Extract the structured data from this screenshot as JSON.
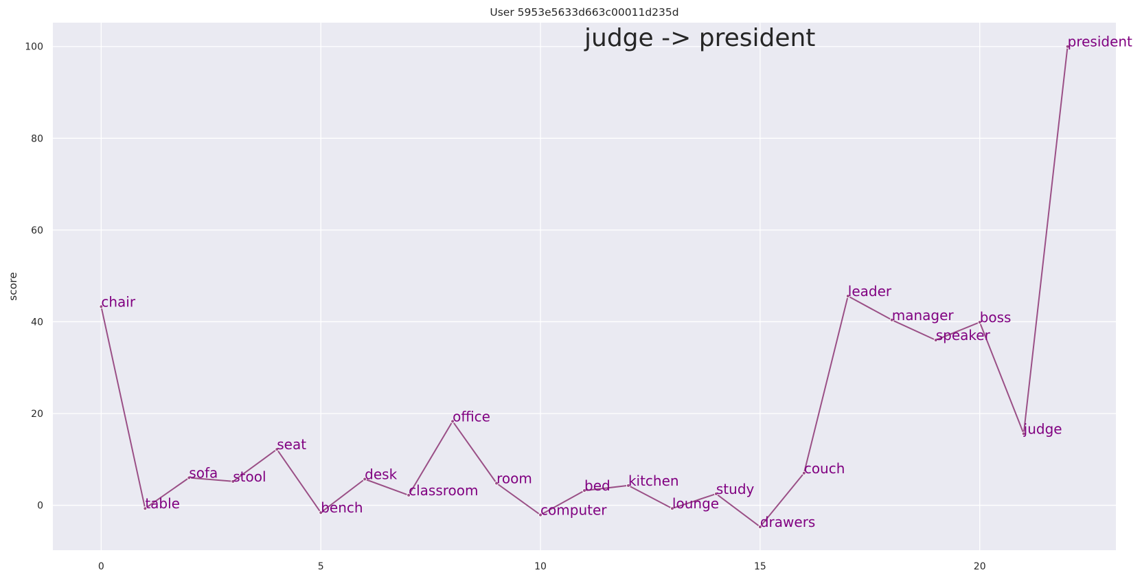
{
  "chart_data": {
    "type": "line",
    "title": "User 5953e5633d663c00011d235d",
    "annotation": "judge -> president",
    "xlabel": "",
    "ylabel": "score",
    "xlim": [
      -1.1,
      23.1
    ],
    "ylim": [
      -9.8,
      105.2
    ],
    "xticks": [
      0,
      5,
      10,
      15,
      20
    ],
    "yticks": [
      0,
      20,
      40,
      60,
      80,
      100
    ],
    "grid": true,
    "colors": {
      "line": "#9a4f86",
      "label": "#800080",
      "background": "#eaeaf2"
    },
    "points": [
      {
        "x": 0,
        "y": 43.3,
        "label": "chair"
      },
      {
        "x": 1,
        "y": -0.7,
        "label": "table"
      },
      {
        "x": 2,
        "y": 6.0,
        "label": "sofa"
      },
      {
        "x": 3,
        "y": 5.2,
        "label": "stool"
      },
      {
        "x": 4,
        "y": 12.2,
        "label": "seat"
      },
      {
        "x": 5,
        "y": -1.6,
        "label": "bench"
      },
      {
        "x": 6,
        "y": 5.7,
        "label": "desk"
      },
      {
        "x": 7,
        "y": 2.2,
        "label": "classroom"
      },
      {
        "x": 8,
        "y": 18.3,
        "label": "office"
      },
      {
        "x": 9,
        "y": 4.8,
        "label": "room"
      },
      {
        "x": 10,
        "y": -2.1,
        "label": "computer"
      },
      {
        "x": 11,
        "y": 3.2,
        "label": "bed"
      },
      {
        "x": 12,
        "y": 4.3,
        "label": "kitchen"
      },
      {
        "x": 13,
        "y": -0.7,
        "label": "lounge"
      },
      {
        "x": 14,
        "y": 2.5,
        "label": "study"
      },
      {
        "x": 15,
        "y": -4.7,
        "label": "drawers"
      },
      {
        "x": 16,
        "y": 7.0,
        "label": "couch"
      },
      {
        "x": 17,
        "y": 45.6,
        "label": "leader"
      },
      {
        "x": 18,
        "y": 40.4,
        "label": "manager"
      },
      {
        "x": 19,
        "y": 36.0,
        "label": "speaker"
      },
      {
        "x": 20,
        "y": 39.9,
        "label": "boss"
      },
      {
        "x": 21,
        "y": 15.6,
        "label": "judge"
      },
      {
        "x": 22,
        "y": 100.0,
        "label": "president"
      }
    ]
  }
}
